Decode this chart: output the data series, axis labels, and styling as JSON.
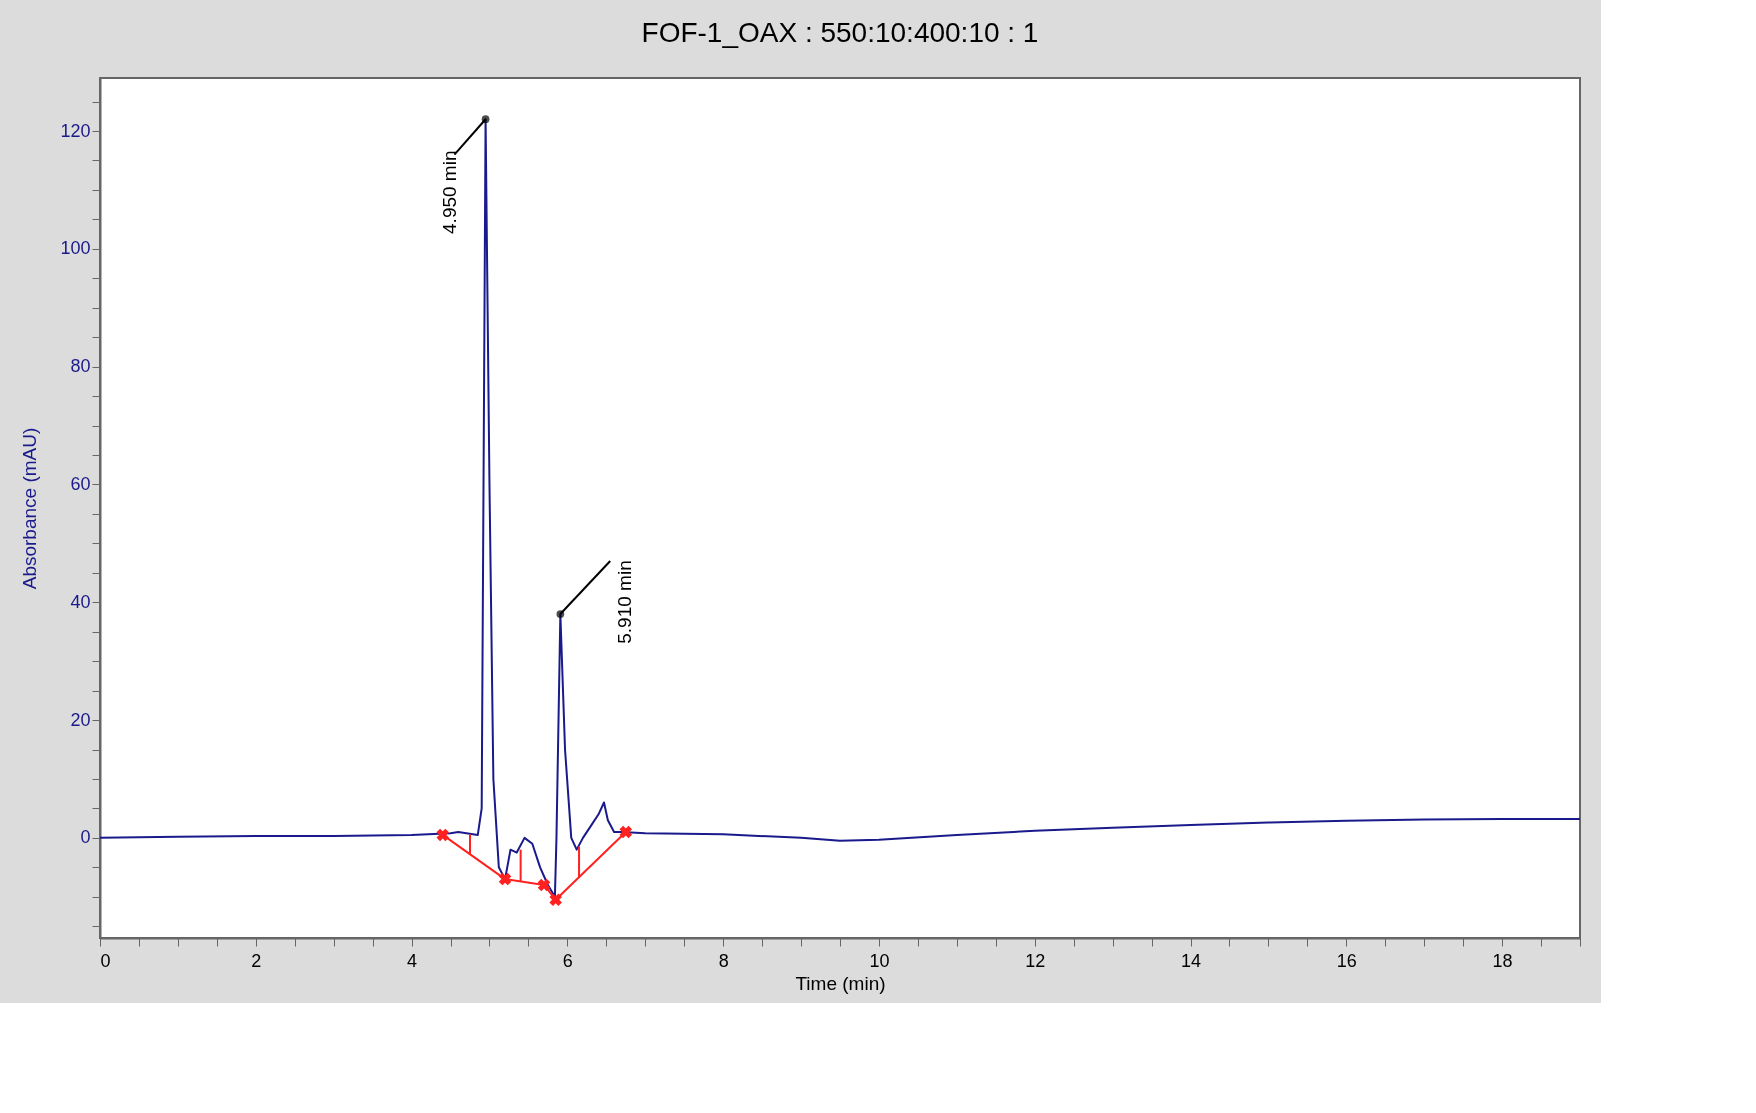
{
  "chart_data": {
    "type": "line",
    "title": "FOF-1_OAX : 550:10:400:10 : 1",
    "xlabel": "Time (min)",
    "ylabel": "Absorbance (mAU)",
    "xlim": [
      0,
      19
    ],
    "ylim": [
      -17,
      129
    ],
    "xticks": [
      0,
      {
        "value": 0.5,
        "label": null
      },
      {
        "value": 1,
        "label": null
      },
      {
        "value": 1.5,
        "label": null
      },
      2,
      {
        "value": 2.5,
        "label": null
      },
      {
        "value": 3,
        "label": null
      },
      {
        "value": 3.5,
        "label": null
      },
      4,
      {
        "value": 4.5,
        "label": null
      },
      {
        "value": 5,
        "label": null
      },
      {
        "value": 5.5,
        "label": null
      },
      6,
      {
        "value": 6.5,
        "label": null
      },
      {
        "value": 7,
        "label": null
      },
      {
        "value": 7.5,
        "label": null
      },
      8,
      {
        "value": 8.5,
        "label": null
      },
      {
        "value": 9,
        "label": null
      },
      {
        "value": 9.5,
        "label": null
      },
      10,
      {
        "value": 10.5,
        "label": null
      },
      {
        "value": 11,
        "label": null
      },
      {
        "value": 11.5,
        "label": null
      },
      12,
      {
        "value": 12.5,
        "label": null
      },
      {
        "value": 13,
        "label": null
      },
      {
        "value": 13.5,
        "label": null
      },
      14,
      {
        "value": 14.5,
        "label": null
      },
      {
        "value": 15,
        "label": null
      },
      {
        "value": 15.5,
        "label": null
      },
      16,
      {
        "value": 16.5,
        "label": null
      },
      {
        "value": 17,
        "label": null
      },
      {
        "value": 17.5,
        "label": null
      },
      18,
      {
        "value": 18.5,
        "label": null
      },
      {
        "value": 19,
        "label": null
      }
    ],
    "yticks": [
      {
        "value": -15,
        "label": null
      },
      {
        "value": -10,
        "label": null
      },
      {
        "value": -5,
        "label": null
      },
      0,
      {
        "value": 5,
        "label": null
      },
      {
        "value": 10,
        "label": null
      },
      {
        "value": 15,
        "label": null
      },
      20,
      {
        "value": 25,
        "label": null
      },
      {
        "value": 30,
        "label": null
      },
      {
        "value": 35,
        "label": null
      },
      40,
      {
        "value": 45,
        "label": null
      },
      {
        "value": 50,
        "label": null
      },
      {
        "value": 55,
        "label": null
      },
      60,
      {
        "value": 65,
        "label": null
      },
      {
        "value": 70,
        "label": null
      },
      {
        "value": 75,
        "label": null
      },
      80,
      {
        "value": 85,
        "label": null
      },
      {
        "value": 90,
        "label": null
      },
      {
        "value": 95,
        "label": null
      },
      100,
      {
        "value": 105,
        "label": null
      },
      {
        "value": 110,
        "label": null
      },
      {
        "value": 115,
        "label": null
      },
      120,
      {
        "value": 125,
        "label": null
      }
    ],
    "grid": false,
    "series": [
      {
        "color": "#1a1a8c",
        "marker": "none",
        "x": [
          0,
          1,
          2,
          3,
          4,
          4.5,
          4.6,
          4.85,
          4.9,
          4.95,
          5.0,
          5.05,
          5.12,
          5.2,
          5.27,
          5.35,
          5.45,
          5.55,
          5.65,
          5.75,
          5.84,
          5.86,
          5.91,
          5.97,
          6.05,
          6.12,
          6.2,
          6.3,
          6.4,
          6.47,
          6.52,
          6.6,
          6.7,
          7,
          8,
          9,
          9.5,
          10,
          11,
          12,
          13,
          14,
          15,
          16,
          17,
          18,
          19
        ],
        "values": [
          0,
          0.2,
          0.3,
          0.3,
          0.5,
          0.8,
          1.0,
          0.5,
          5,
          122,
          60,
          10,
          -5,
          -7,
          -2,
          -2.5,
          0,
          -1,
          -5,
          -8,
          -10,
          0,
          38,
          15,
          0,
          -2,
          0,
          2,
          4,
          6,
          3,
          1,
          1,
          0.8,
          0.6,
          0,
          -0.5,
          -0.3,
          0.5,
          1.2,
          1.7,
          2.2,
          2.6,
          2.9,
          3.1,
          3.2,
          3.2
        ]
      },
      {
        "color": "#ff2020",
        "marker": "cross",
        "x": [
          4.4,
          5.2,
          5.7,
          5.85,
          6.75
        ],
        "values": [
          0.5,
          -7,
          -8,
          -10.5,
          1
        ]
      },
      {
        "color": "#ff2020",
        "marker": "none",
        "x": [
          4.75,
          4.75
        ],
        "values": [
          0.6,
          -2.8
        ]
      },
      {
        "color": "#ff2020",
        "marker": "none",
        "x": [
          5.4,
          5.4
        ],
        "values": [
          -2,
          -7.4
        ]
      },
      {
        "color": "#ff2020",
        "marker": "none",
        "x": [
          6.15,
          6.15
        ],
        "values": [
          -1.5,
          -6.7
        ]
      }
    ],
    "annotations": [
      {
        "text": "4.950 min",
        "x": 4.95,
        "y": 122
      },
      {
        "text": "5.910 min",
        "x": 5.91,
        "y": 38
      }
    ]
  }
}
